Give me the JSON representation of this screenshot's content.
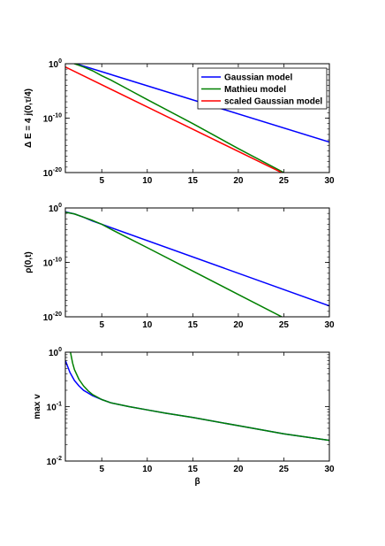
{
  "chart_data": [
    {
      "type": "line",
      "ylabel": "Δ E = 4 j(0,τ/4)",
      "xlabel": "",
      "xlim": [
        1,
        30
      ],
      "ylim_log10": [
        -20,
        0
      ],
      "yscale": "log",
      "x_ticks": [
        "5",
        "10",
        "15",
        "20",
        "25",
        "30"
      ],
      "x_tick_values": [
        5,
        10,
        15,
        20,
        25,
        30
      ],
      "y_ticks": [
        {
          "base": "10",
          "exp": "0",
          "log10": 0
        },
        {
          "base": "10",
          "exp": "-10",
          "log10": -10
        },
        {
          "base": "10",
          "exp": "-20",
          "log10": -20
        }
      ],
      "legend": {
        "position": "top-right",
        "entries": [
          "Gaussian model",
          "Mathieu model",
          "scaled Gaussian model"
        ]
      },
      "series": [
        {
          "name": "Gaussian model",
          "color": "#0000ff",
          "x": [
            1,
            30
          ],
          "log10_y": [
            0.6,
            -14.4
          ]
        },
        {
          "name": "Mathieu model",
          "color": "#008000",
          "x": [
            1,
            2,
            3,
            4,
            5,
            6,
            8,
            10,
            15,
            20,
            25,
            26
          ],
          "log10_y": [
            0.5,
            0.0,
            -0.6,
            -1.3,
            -2.2,
            -3.0,
            -4.8,
            -6.6,
            -11.0,
            -15.6,
            -20.0,
            -20.8
          ]
        },
        {
          "name": "scaled Gaussian model",
          "color": "#ff0000",
          "x": [
            1,
            25
          ],
          "log10_y": [
            -0.6,
            -20.2
          ]
        }
      ]
    },
    {
      "type": "line",
      "ylabel": "ρ(0,t)",
      "xlabel": "",
      "xlim": [
        1,
        30
      ],
      "ylim_log10": [
        -20,
        0
      ],
      "yscale": "log",
      "x_ticks": [
        "5",
        "10",
        "15",
        "20",
        "25",
        "30"
      ],
      "x_tick_values": [
        5,
        10,
        15,
        20,
        25,
        30
      ],
      "y_ticks": [
        {
          "base": "10",
          "exp": "0",
          "log10": 0
        },
        {
          "base": "10",
          "exp": "-10",
          "log10": -10
        },
        {
          "base": "10",
          "exp": "-20",
          "log10": -20
        }
      ],
      "series": [
        {
          "color": "#0000ff",
          "x": [
            1,
            2,
            3,
            4,
            5,
            30
          ],
          "log10_y": [
            -0.7,
            -1.1,
            -1.7,
            -2.4,
            -3.0,
            -18.0
          ]
        },
        {
          "color": "#008000",
          "x": [
            1,
            2,
            3,
            4,
            5,
            6,
            8,
            10,
            15,
            20,
            25,
            27.2
          ],
          "log10_y": [
            -0.8,
            -1.1,
            -1.7,
            -2.3,
            -3.0,
            -3.9,
            -5.6,
            -7.3,
            -11.6,
            -15.9,
            -20.2,
            -22.0
          ]
        }
      ]
    },
    {
      "type": "line",
      "ylabel": "max v",
      "xlabel": "β",
      "xlim": [
        1,
        30
      ],
      "ylim_log10": [
        -2,
        0
      ],
      "yscale": "log",
      "x_ticks": [
        "5",
        "10",
        "15",
        "20",
        "25",
        "30"
      ],
      "x_tick_values": [
        5,
        10,
        15,
        20,
        25,
        30
      ],
      "y_ticks": [
        {
          "base": "10",
          "exp": "0",
          "log10": 0
        },
        {
          "base": "10",
          "exp": "-1",
          "log10": -1
        },
        {
          "base": "10",
          "exp": "-2",
          "log10": -2
        }
      ],
      "series": [
        {
          "color": "#0000ff",
          "x": [
            1.0,
            1.5,
            2,
            2.5,
            3,
            3.5,
            4,
            5,
            6,
            8,
            10,
            12,
            15,
            20,
            25,
            30
          ],
          "log10_y": [
            -0.15,
            -0.37,
            -0.52,
            -0.62,
            -0.7,
            -0.75,
            -0.8,
            -0.87,
            -0.93,
            -1.0,
            -1.06,
            -1.12,
            -1.2,
            -1.35,
            -1.5,
            -1.62
          ]
        },
        {
          "color": "#008000",
          "x": [
            1.5,
            1.8,
            2,
            2.5,
            3,
            3.5,
            4,
            5,
            6,
            8,
            10,
            12,
            15,
            20,
            25,
            30
          ],
          "log10_y": [
            0.05,
            -0.2,
            -0.32,
            -0.5,
            -0.62,
            -0.71,
            -0.78,
            -0.87,
            -0.93,
            -1.0,
            -1.06,
            -1.12,
            -1.2,
            -1.35,
            -1.5,
            -1.62
          ]
        }
      ]
    }
  ]
}
